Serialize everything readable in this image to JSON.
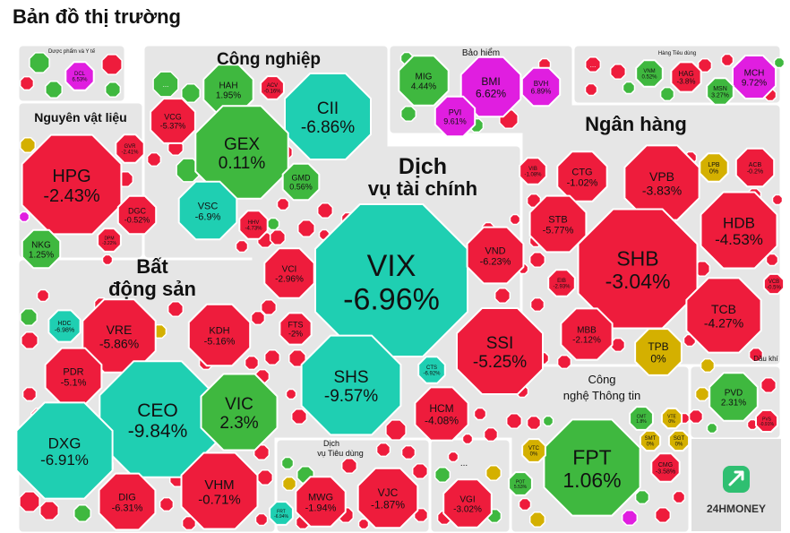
{
  "page": {
    "title": "Bản đồ thị trường"
  },
  "brand": {
    "name": "24HMONEY"
  },
  "colors": {
    "up": "#3fb83f",
    "down": "#ee1c3c",
    "flat": "#d4b000",
    "floor": "#1fcfb2",
    "ceiling": "#e01ee0",
    "panel": "#e6e6e6",
    "border": "#ffffff"
  },
  "chart_data": {
    "type": "heatmap",
    "title": "Bản đồ thị trường",
    "sectors": [
      {
        "name": "Dược phẩm và Y tế",
        "stocks": [
          {
            "ticker": "DCL",
            "change": 6.53
          }
        ]
      },
      {
        "name": "Công nghiệp",
        "stocks": [
          {
            "ticker": "HAH",
            "change": 1.95
          },
          {
            "ticker": "ACV",
            "change": -0.16
          },
          {
            "ticker": "CII",
            "change": -6.86
          },
          {
            "ticker": "VCG",
            "change": -5.37
          },
          {
            "ticker": "GEX",
            "change": 0.11
          },
          {
            "ticker": "GMD",
            "change": 0.56
          },
          {
            "ticker": "VSC",
            "change": -6.9
          },
          {
            "ticker": "HHV",
            "change": -4.73
          }
        ]
      },
      {
        "name": "Bảo hiểm",
        "stocks": [
          {
            "ticker": "MIG",
            "change": 4.44
          },
          {
            "ticker": "BMI",
            "change": 6.62
          },
          {
            "ticker": "BVH",
            "change": 6.89
          },
          {
            "ticker": "PVI",
            "change": 9.61
          }
        ]
      },
      {
        "name": "Hàng Tiêu dùng",
        "stocks": [
          {
            "ticker": "VNM",
            "change": 0.52
          },
          {
            "ticker": "HAG",
            "change": -3.8
          },
          {
            "ticker": "MCH",
            "change": 9.72
          },
          {
            "ticker": "MSN",
            "change": 3.27
          }
        ]
      },
      {
        "name": "Nguyên vật liệu",
        "stocks": [
          {
            "ticker": "HPG",
            "change": -2.43
          },
          {
            "ticker": "GVR",
            "change": -2.41
          },
          {
            "ticker": "DGC",
            "change": -0.52
          },
          {
            "ticker": "DPM",
            "change": -3.22
          },
          {
            "ticker": "NKG",
            "change": 1.25
          }
        ]
      },
      {
        "name": "Dịch vụ tài chính",
        "stocks": [
          {
            "ticker": "VIX",
            "change": -6.96
          },
          {
            "ticker": "VND",
            "change": -6.23
          },
          {
            "ticker": "VCI",
            "change": -2.96
          },
          {
            "ticker": "FTS",
            "change": -2
          },
          {
            "ticker": "SSI",
            "change": -5.25
          },
          {
            "ticker": "SHS",
            "change": -9.57
          },
          {
            "ticker": "CTS",
            "change": -6.92
          },
          {
            "ticker": "HCM",
            "change": -4.08
          }
        ]
      },
      {
        "name": "Ngân hàng",
        "stocks": [
          {
            "ticker": "VIB",
            "change": -1.08
          },
          {
            "ticker": "CTG",
            "change": -1.02
          },
          {
            "ticker": "VPB",
            "change": -3.83
          },
          {
            "ticker": "LPB",
            "change": 0
          },
          {
            "ticker": "ACB",
            "change": -0.2
          },
          {
            "ticker": "STB",
            "change": -5.77
          },
          {
            "ticker": "HDB",
            "change": -4.53
          },
          {
            "ticker": "SHB",
            "change": -3.04
          },
          {
            "ticker": "EIB",
            "change": -2.93
          },
          {
            "ticker": "VCB",
            "change": -0.5
          },
          {
            "ticker": "MBB",
            "change": -2.12
          },
          {
            "ticker": "TPB",
            "change": 0
          },
          {
            "ticker": "TCB",
            "change": -4.27
          }
        ]
      },
      {
        "name": "Bất động sản",
        "stocks": [
          {
            "ticker": "HDC",
            "change": -6.98
          },
          {
            "ticker": "VRE",
            "change": -5.86
          },
          {
            "ticker": "KDH",
            "change": -5.16
          },
          {
            "ticker": "PDR",
            "change": -5.1
          },
          {
            "ticker": "CEO",
            "change": -9.84
          },
          {
            "ticker": "VIC",
            "change": 2.3
          },
          {
            "ticker": "DXG",
            "change": -6.91
          },
          {
            "ticker": "DIG",
            "change": -6.31
          },
          {
            "ticker": "VHM",
            "change": -0.71
          }
        ]
      },
      {
        "name": "Dịch vụ Tiêu dùng",
        "stocks": [
          {
            "ticker": "MWG",
            "change": -1.94
          },
          {
            "ticker": "VJC",
            "change": -1.87
          },
          {
            "ticker": "FRT",
            "change": -6.94
          }
        ]
      },
      {
        "name": "...",
        "stocks": [
          {
            "ticker": "VGI",
            "change": -3.02
          }
        ]
      },
      {
        "name": "Công nghệ Thông tin",
        "stocks": [
          {
            "ticker": "FPT",
            "change": 1.06
          },
          {
            "ticker": "CMT",
            "change": 1.8
          },
          {
            "ticker": "VTE",
            "change": 0
          },
          {
            "ticker": "SMT",
            "change": 0
          },
          {
            "ticker": "SGT",
            "change": 0
          },
          {
            "ticker": "CMG",
            "change": -3.58
          },
          {
            "ticker": "VTC",
            "change": 0
          },
          {
            "ticker": "POT",
            "change": 5.53
          }
        ]
      },
      {
        "name": "Dầu khí",
        "stocks": [
          {
            "ticker": "PVD",
            "change": 2.31
          },
          {
            "ticker": "PVS",
            "change": -0.91
          }
        ]
      }
    ]
  },
  "sector_labels": {
    "pharma": "Dược phẩm và Y tế",
    "industry": "Công nghiệp",
    "insurance": "Bảo hiểm",
    "consumer": "Hàng Tiêu dùng",
    "materials": "Nguyên vật liệu",
    "finance_1": "Dịch",
    "finance_2": "vụ tài chính",
    "banks": "Ngân hàng",
    "realestate_1": "Bất",
    "realestate_2": "động sản",
    "consumer_services_1": "Dịch",
    "consumer_services_2": "vụ Tiêu dùng",
    "other": "...",
    "it_1": "Công",
    "it_2": "nghệ Thông tin",
    "oil": "Dầu khí"
  },
  "filler_label": "..."
}
